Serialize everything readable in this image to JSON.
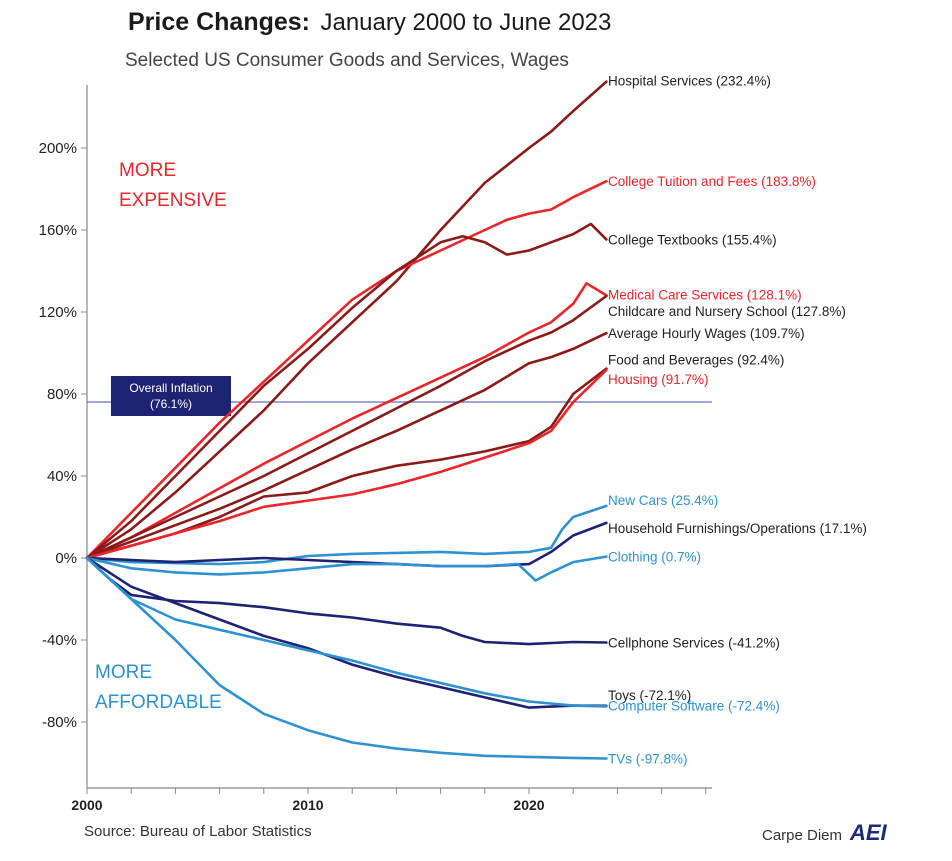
{
  "header": {
    "title_strong": "Price Changes:",
    "title_rest": "January 2000 to June 2023",
    "subtitle": "Selected US Consumer Goods and Services, Wages"
  },
  "annotations": {
    "more_expensive_line1": "MORE",
    "more_expensive_line2": "EXPENSIVE",
    "more_affordable_line1": "MORE",
    "more_affordable_line2": "AFFORDABLE"
  },
  "reference_line": {
    "label_line1": "Overall Inflation",
    "label_line2": "(76.1%)",
    "value": 76.1,
    "color": "#6b6fb3"
  },
  "footer": {
    "source": "Source: Bureau of Labor Statistics",
    "brand_text": "Carpe Diem",
    "brand_logo": "AEI"
  },
  "chart_data": {
    "type": "line",
    "xlim": [
      2000,
      2028
    ],
    "ylim": [
      -100,
      230
    ],
    "x_ticks": [
      {
        "value": 2000,
        "label": "2000"
      },
      {
        "value": 2010,
        "label": "2010"
      },
      {
        "value": 2020,
        "label": "2020"
      }
    ],
    "y_ticks": [
      {
        "value": 200,
        "label": "200%"
      },
      {
        "value": 160,
        "label": "160%"
      },
      {
        "value": 120,
        "label": "120%"
      },
      {
        "value": 80,
        "label": "80%"
      },
      {
        "value": 40,
        "label": "40%"
      },
      {
        "value": 0,
        "label": "0%"
      },
      {
        "value": -40,
        "label": "-40%"
      },
      {
        "value": -80,
        "label": "-80%"
      }
    ],
    "series": [
      {
        "label": "Hospital Services (232.4%)",
        "color": "#8b1a1a",
        "x": [
          2000,
          2002,
          2004,
          2006,
          2008,
          2010,
          2012,
          2014,
          2016,
          2018,
          2020,
          2021,
          2022,
          2023.5
        ],
        "y": [
          0,
          14,
          32,
          52,
          72,
          95,
          115,
          135,
          160,
          183,
          200,
          208,
          218,
          232.4
        ]
      },
      {
        "label": "College Tuition and Fees (183.8%)",
        "color": "#e8262b",
        "x": [
          2000,
          2002,
          2004,
          2006,
          2008,
          2010,
          2012,
          2014,
          2016,
          2018,
          2019,
          2020,
          2021,
          2022,
          2023.5
        ],
        "y": [
          0,
          22,
          44,
          66,
          86,
          106,
          126,
          140,
          150,
          160,
          165,
          168,
          170,
          176,
          183.8
        ]
      },
      {
        "label": "College Textbooks (155.4%)",
        "color": "#8b1a1a",
        "x": [
          2000,
          2002,
          2004,
          2006,
          2008,
          2010,
          2012,
          2014,
          2016,
          2017,
          2018,
          2019,
          2020,
          2021,
          2022,
          2022.8,
          2023.5
        ],
        "y": [
          0,
          18,
          40,
          62,
          84,
          102,
          122,
          140,
          154,
          157,
          154,
          148,
          150,
          154,
          158,
          163,
          155.4
        ]
      },
      {
        "label": "Medical Care Services (128.1%)",
        "color": "#e8262b",
        "x": [
          2000,
          2002,
          2004,
          2006,
          2008,
          2010,
          2012,
          2014,
          2016,
          2018,
          2020,
          2021,
          2022,
          2022.6,
          2023.5
        ],
        "y": [
          0,
          10,
          22,
          34,
          46,
          57,
          68,
          78,
          88,
          98,
          110,
          115,
          124,
          134,
          128.1
        ]
      },
      {
        "label": "Childcare and Nursery School (127.8%)",
        "color": "#8b1a1a",
        "x": [
          2000,
          2002,
          2004,
          2006,
          2008,
          2010,
          2012,
          2014,
          2016,
          2018,
          2020,
          2021,
          2022,
          2023.5
        ],
        "y": [
          0,
          10,
          20,
          30,
          40,
          51,
          62,
          73,
          84,
          96,
          106,
          110,
          116,
          127.8
        ]
      },
      {
        "label": "Average Hourly Wages (109.7%)",
        "color": "#8b1a1a",
        "x": [
          2000,
          2002,
          2004,
          2006,
          2008,
          2010,
          2012,
          2014,
          2016,
          2018,
          2020,
          2021,
          2022,
          2023.5
        ],
        "y": [
          0,
          8,
          16,
          24,
          33,
          43,
          53,
          62,
          72,
          82,
          95,
          98,
          102,
          109.7
        ]
      },
      {
        "label": "Food and Beverages (92.4%)",
        "color": "#8b1a1a",
        "x": [
          2000,
          2002,
          2004,
          2006,
          2008,
          2010,
          2012,
          2014,
          2016,
          2018,
          2020,
          2021,
          2022,
          2023.5
        ],
        "y": [
          0,
          6,
          12,
          20,
          30,
          32,
          40,
          45,
          48,
          52,
          57,
          64,
          80,
          92.4
        ]
      },
      {
        "label": "Housing (91.7%)",
        "color": "#e8262b",
        "x": [
          2000,
          2002,
          2004,
          2006,
          2008,
          2010,
          2012,
          2014,
          2016,
          2018,
          2020,
          2021,
          2022,
          2023.5
        ],
        "y": [
          0,
          6,
          12,
          18,
          25,
          28,
          31,
          36,
          42,
          49,
          56,
          62,
          76,
          91.7
        ]
      },
      {
        "label": "New Cars (25.4%)",
        "color": "#2e92d0",
        "x": [
          2000,
          2002,
          2004,
          2006,
          2008,
          2010,
          2012,
          2014,
          2016,
          2018,
          2020,
          2021,
          2021.5,
          2022,
          2023.5
        ],
        "y": [
          0,
          -2,
          -2.5,
          -3,
          -2,
          1,
          2,
          2.5,
          3,
          2,
          3,
          5,
          14,
          20,
          25.4
        ]
      },
      {
        "label": "Household Furnishings/Operations (17.1%)",
        "color": "#1e2272",
        "x": [
          2000,
          2002,
          2004,
          2006,
          2008,
          2010,
          2012,
          2014,
          2016,
          2018,
          2020,
          2021,
          2022,
          2023.5
        ],
        "y": [
          0,
          -1,
          -2,
          -1,
          0,
          -1,
          -2,
          -3,
          -4,
          -4,
          -3,
          3,
          11,
          17.1
        ]
      },
      {
        "label": "Clothing (0.7%)",
        "color": "#2e92d0",
        "x": [
          2000,
          2002,
          2004,
          2006,
          2008,
          2010,
          2012,
          2014,
          2016,
          2018,
          2019.5,
          2020.3,
          2021,
          2022,
          2023.5
        ],
        "y": [
          0,
          -5,
          -7,
          -8,
          -7,
          -5,
          -3,
          -3,
          -4,
          -4,
          -3,
          -11,
          -7,
          -2,
          0.7
        ]
      },
      {
        "label": "Cellphone Services (-41.2%)",
        "color": "#1e2272",
        "x": [
          2000,
          2001,
          2002,
          2004,
          2006,
          2008,
          2010,
          2012,
          2014,
          2016,
          2017,
          2018,
          2020,
          2022,
          2023.5
        ],
        "y": [
          0,
          -10,
          -18,
          -21,
          -22,
          -24,
          -27,
          -29,
          -32,
          -34,
          -38,
          -41,
          -42,
          -41,
          -41.2
        ]
      },
      {
        "label": "Toys (-72.1%)",
        "color": "#1e2272",
        "x": [
          2000,
          2002,
          2004,
          2006,
          2008,
          2010,
          2012,
          2014,
          2016,
          2018,
          2020,
          2022,
          2023.5
        ],
        "y": [
          0,
          -14,
          -22,
          -30,
          -38,
          -44,
          -52,
          -58,
          -63,
          -68,
          -73,
          -72,
          -72.1
        ]
      },
      {
        "label": "Computer Software (-72.4%)",
        "color": "#2e92d0",
        "x": [
          2000,
          2002,
          2004,
          2006,
          2008,
          2010,
          2012,
          2014,
          2016,
          2018,
          2020,
          2022,
          2023.5
        ],
        "y": [
          0,
          -20,
          -30,
          -35,
          -40,
          -45,
          -50,
          -56,
          -61,
          -66,
          -70,
          -72,
          -72.4
        ]
      },
      {
        "label": "TVs (-97.8%)",
        "color": "#2e92d0",
        "x": [
          2000,
          2002,
          2004,
          2006,
          2008,
          2010,
          2012,
          2014,
          2016,
          2018,
          2020,
          2022,
          2023.5
        ],
        "y": [
          0,
          -20,
          -40,
          -62,
          -76,
          -84,
          -90,
          -93,
          -95,
          -96.5,
          -97,
          -97.5,
          -97.8
        ]
      }
    ]
  }
}
